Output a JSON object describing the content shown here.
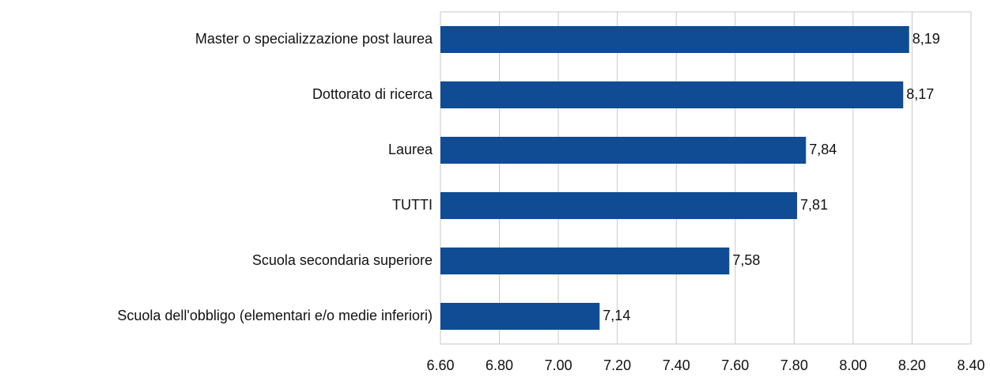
{
  "chart_data": {
    "type": "bar",
    "orientation": "horizontal",
    "categories": [
      "Master o specializzazione post laurea",
      "Dottorato di ricerca",
      "Laurea",
      "TUTTI",
      "Scuola secondaria superiore",
      "Scuola dell'obbligo (elementari e/o medie inferiori)"
    ],
    "values": [
      8.19,
      8.17,
      7.84,
      7.81,
      7.58,
      7.14
    ],
    "value_labels": [
      "8,19",
      "8,17",
      "7,84",
      "7,81",
      "7,58",
      "7,14"
    ],
    "color": "#0f4c93",
    "xlim": [
      6.6,
      8.4
    ],
    "xticks": [
      {
        "value": 6.6,
        "label": "6.60"
      },
      {
        "value": 6.8,
        "label": "6.80"
      },
      {
        "value": 7.0,
        "label": "7.00"
      },
      {
        "value": 7.2,
        "label": "7.20"
      },
      {
        "value": 7.4,
        "label": "7.40"
      },
      {
        "value": 7.6,
        "label": "7.60"
      },
      {
        "value": 7.8,
        "label": "7.80"
      },
      {
        "value": 8.0,
        "label": "8.00"
      },
      {
        "value": 8.2,
        "label": "8.20"
      },
      {
        "value": 8.4,
        "label": "8.40"
      }
    ],
    "grid": true
  }
}
